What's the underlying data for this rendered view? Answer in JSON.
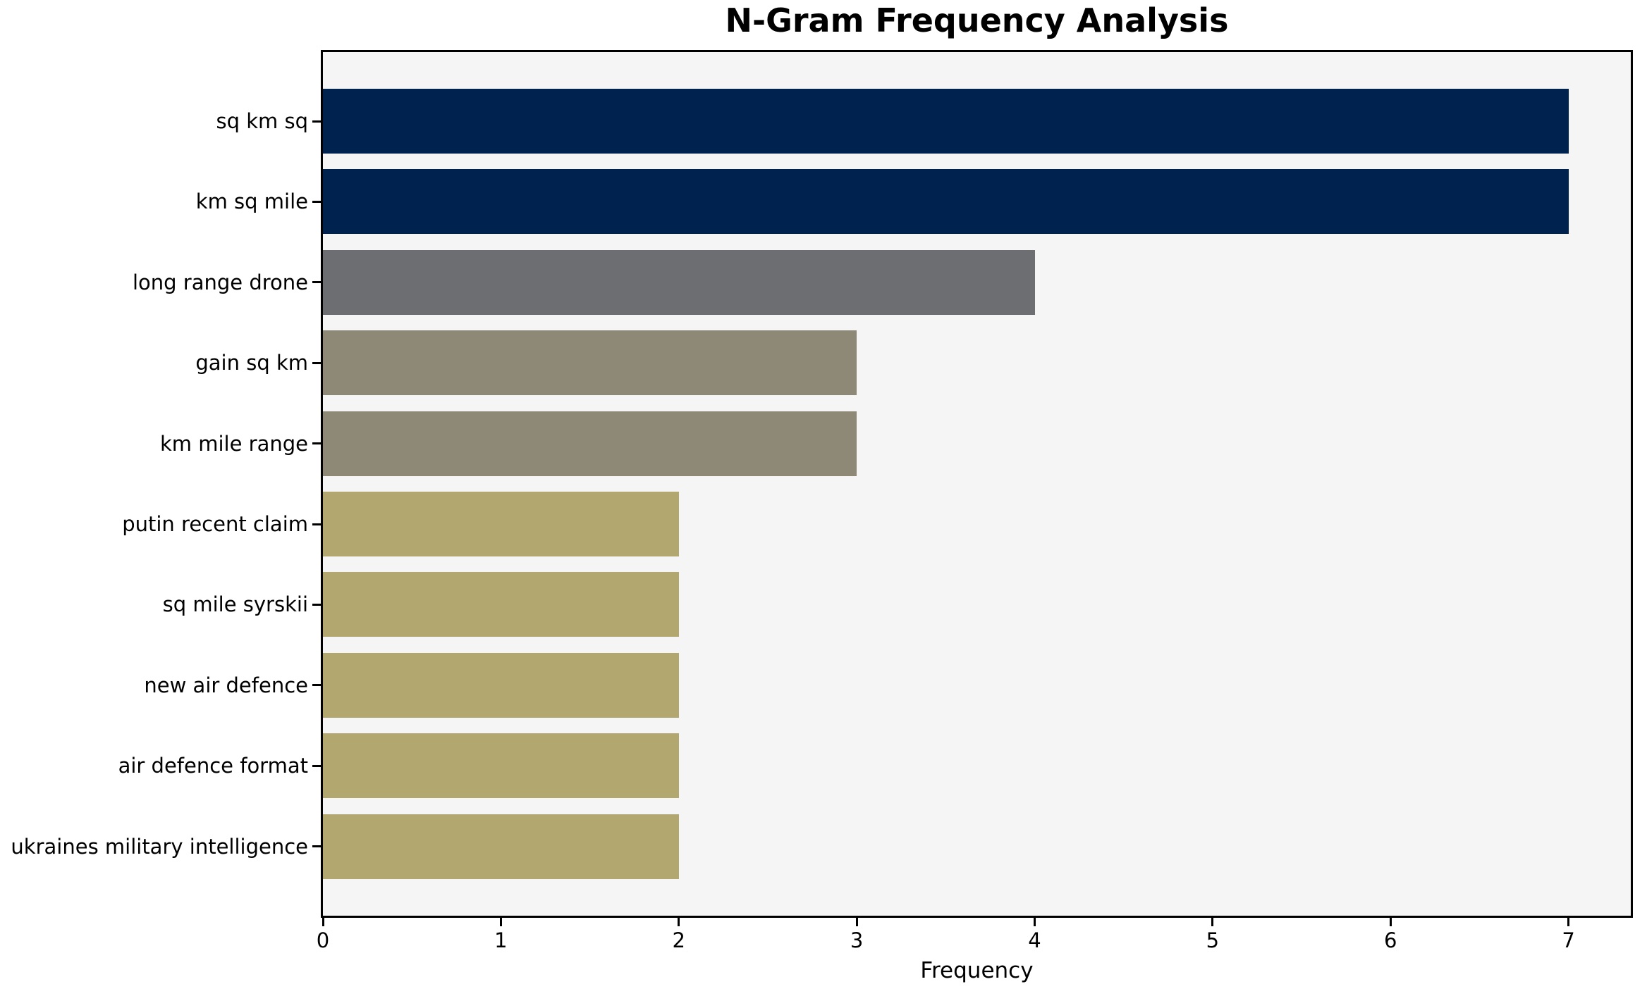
{
  "chart_data": {
    "type": "bar",
    "orientation": "horizontal",
    "title": "N-Gram Frequency Analysis",
    "xlabel": "Frequency",
    "ylabel": "",
    "categories": [
      "sq km sq",
      "km sq mile",
      "long range drone",
      "gain sq km",
      "km mile range",
      "putin recent claim",
      "sq mile syrskii",
      "new air defence",
      "air defence format",
      "ukraines military intelligence"
    ],
    "values": [
      7,
      7,
      4,
      3,
      3,
      2,
      2,
      2,
      2,
      2
    ],
    "xticks": [
      0,
      1,
      2,
      3,
      4,
      5,
      6,
      7
    ],
    "xlim": [
      0,
      7.35
    ],
    "bar_colors": [
      "#00224e",
      "#00224e",
      "#6c6e72",
      "#8e8877",
      "#8e8877",
      "#b2a76e",
      "#b2a76e",
      "#b2a76e",
      "#b2a76e",
      "#b2a76e"
    ],
    "grid": false,
    "legend": null,
    "plot_background": "#f5f5f5",
    "figure_background": "#ffffff",
    "spine_color": "#000000",
    "text_color": "#000000"
  }
}
